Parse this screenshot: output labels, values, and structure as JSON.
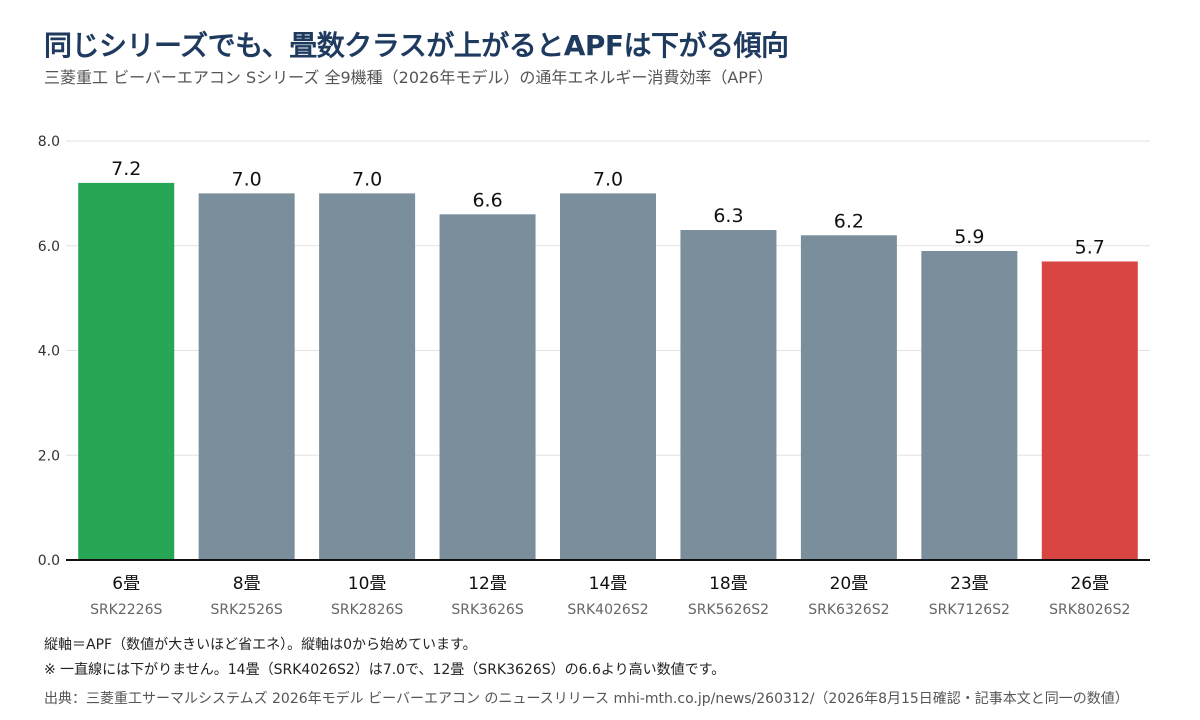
{
  "title": "同じシリーズでも、畳数クラスが上がるとAPFは下がる傾向",
  "subtitle": "三菱重工 ビーバーエアコン Sシリーズ 全9機種（2026年モデル）の通年エネルギー消費効率（APF）",
  "colors": {
    "highlight_first": "#27a656",
    "highlight_last": "#d94543",
    "default_bar": "#7a8f9b",
    "grid": "#e2e2e2",
    "axis": "#111111",
    "title": "#1f3a5f"
  },
  "chart_data": {
    "type": "bar",
    "categories": [
      "6畳",
      "8畳",
      "10畳",
      "12畳",
      "14畳",
      "18畳",
      "20畳",
      "23畳",
      "26畳"
    ],
    "models": [
      "SRK2226S",
      "SRK2526S",
      "SRK2826S",
      "SRK3626S",
      "SRK4026S2",
      "SRK5626S2",
      "SRK6326S2",
      "SRK7126S2",
      "SRK8026S2"
    ],
    "values": [
      7.2,
      7.0,
      7.0,
      6.6,
      7.0,
      6.3,
      6.2,
      5.9,
      5.7
    ],
    "value_labels": [
      "7.2",
      "7.0",
      "7.0",
      "6.6",
      "7.0",
      "6.3",
      "6.2",
      "5.9",
      "5.7"
    ],
    "bar_colors": [
      "#27a656",
      "#7a8f9b",
      "#7a8f9b",
      "#7a8f9b",
      "#7a8f9b",
      "#7a8f9b",
      "#7a8f9b",
      "#7a8f9b",
      "#d94543"
    ],
    "yticks": [
      0,
      2,
      4,
      6,
      8
    ],
    "ytick_labels": [
      "0.0",
      "2.0",
      "4.0",
      "6.0",
      "8.0"
    ],
    "ylim": [
      0,
      8
    ],
    "grid": true,
    "xlabel": "",
    "ylabel": ""
  },
  "notes": {
    "line1": "縦軸＝APF（数値が大きいほど省エネ）。縦軸は0から始めています。",
    "line2": "※ 一直線には下がりません。14畳（SRK4026S2）は7.0で、12畳（SRK3626S）の6.6より高い数値です。"
  },
  "source": "出典：三菱重工サーマルシステムズ 2026年モデル ビーバーエアコン のニュースリリース mhi-mth.co.jp/news/260312/（2026年8月15日確認・記事本文と同一の数値）"
}
